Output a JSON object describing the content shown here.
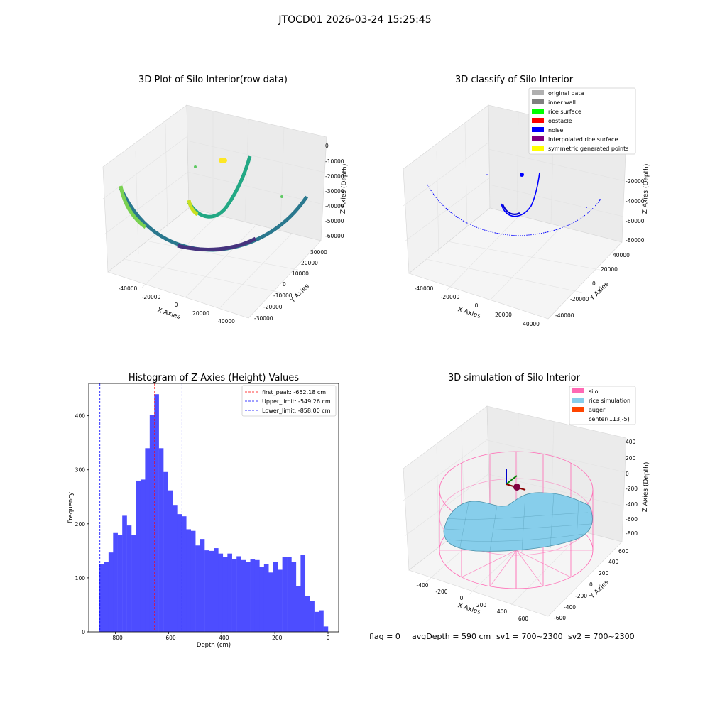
{
  "suptitle": "JTOCD01 2026-03-24 15:25:45",
  "footer": {
    "flag": "flag = 0",
    "avg_depth": "avgDepth = 590 cm",
    "sv1": "sv1 = 700~2300",
    "sv2": "sv2 = 700~2300"
  },
  "colors": {
    "histogram_bar": "#4d4dff",
    "first_peak_line": "#ff0000",
    "limit_lines": "#0000ff",
    "silo_wire": "#ff69b4",
    "rice_surface": "#87ceeb",
    "legend_original": "#b0b0b0",
    "legend_inner_wall": "#808080",
    "legend_rice_surface": "#00ff00",
    "legend_obstacle": "#ff0000",
    "legend_noise": "#0000ff",
    "legend_interpolated": "#800080",
    "legend_symmetric": "#ffff00",
    "legend_auger": "#ff4500"
  },
  "chart_data": [
    {
      "type": "scatter",
      "title": "3D Plot of Silo Interior(row data)",
      "xlabel": "X Axies",
      "ylabel": "Y Axies",
      "zlabel": "Z Axies (Depth)",
      "x_ticks": [
        "-40000",
        "-20000",
        "0",
        "20000",
        "40000"
      ],
      "y_ticks": [
        "-30000",
        "-20000",
        "-10000",
        "0",
        "10000",
        "20000",
        "30000"
      ],
      "z_ticks": [
        "0",
        "-10000",
        "-20000",
        "-30000",
        "-40000",
        "-50000",
        "-60000"
      ],
      "colormap": "viridis",
      "grid": true
    },
    {
      "type": "scatter",
      "title": "3D classify of Silo Interior",
      "xlabel": "X Axies",
      "ylabel": "Y Axies",
      "zlabel": "Z Axies (Depth)",
      "x_ticks": [
        "-40000",
        "-20000",
        "0",
        "20000",
        "40000"
      ],
      "y_ticks": [
        "-40000",
        "-20000",
        "0",
        "20000",
        "40000"
      ],
      "z_ticks": [
        "-20000",
        "-40000",
        "-60000",
        "-80000"
      ],
      "legend_position": "top-right",
      "legend": [
        {
          "label": "original data",
          "color_key": "legend_original"
        },
        {
          "label": "inner wall",
          "color_key": "legend_inner_wall"
        },
        {
          "label": "rice surface",
          "color_key": "legend_rice_surface"
        },
        {
          "label": "obstacle",
          "color_key": "legend_obstacle"
        },
        {
          "label": "noise",
          "color_key": "legend_noise"
        },
        {
          "label": "interpolated rice surface",
          "color_key": "legend_interpolated"
        },
        {
          "label": "symmetric generated points",
          "color_key": "legend_symmetric"
        }
      ],
      "grid": true
    },
    {
      "type": "bar",
      "title": "Histogram of Z-Axies (Height) Values",
      "xlabel": "Depth (cm)",
      "ylabel": "Frequency",
      "xlim": [
        -900,
        40
      ],
      "ylim": [
        0,
        460
      ],
      "x_ticks": [
        -800,
        -600,
        -400,
        -200,
        0
      ],
      "y_ticks": [
        0,
        100,
        200,
        300,
        400
      ],
      "bin_start": -860,
      "bin_width": 17.2,
      "values": [
        125,
        130,
        147,
        183,
        180,
        215,
        197,
        180,
        280,
        282,
        340,
        402,
        440,
        340,
        296,
        262,
        235,
        218,
        214,
        190,
        187,
        160,
        172,
        151,
        150,
        155,
        145,
        138,
        145,
        135,
        140,
        133,
        130,
        134,
        133,
        120,
        125,
        110,
        130,
        115,
        138,
        138,
        130,
        85,
        143,
        67,
        57,
        37,
        40,
        10
      ],
      "vlines": [
        {
          "label": "first_peak: -652.18 cm",
          "x": -652.18,
          "color_key": "first_peak_line"
        },
        {
          "label": "Upper_limit: -549.26 cm",
          "x": -549.26,
          "color_key": "limit_lines"
        },
        {
          "label": "Lower_limit: -858.00 cm",
          "x": -858.0,
          "color_key": "limit_lines"
        }
      ],
      "legend_position": "top-right"
    },
    {
      "type": "surface",
      "title": "3D simulation of Silo Interior",
      "xlabel": "X Axies",
      "ylabel": "Y Axies",
      "zlabel": "Z Axies (Depth)",
      "x_ticks": [
        "-400",
        "-200",
        "0",
        "200",
        "400",
        "600"
      ],
      "y_ticks": [
        "-600",
        "-400",
        "-200",
        "0",
        "200",
        "400",
        "600"
      ],
      "z_ticks": [
        "400",
        "200",
        "0",
        "-200",
        "-400",
        "-600",
        "-800"
      ],
      "legend_position": "top-right",
      "legend": [
        {
          "label": "silo",
          "color_key": "silo_wire"
        },
        {
          "label": "rice simulation",
          "color_key": "rice_surface"
        },
        {
          "label": "auger",
          "color_key": "legend_auger"
        },
        {
          "label": "center(113,-5)",
          "color_key": ""
        }
      ]
    }
  ]
}
